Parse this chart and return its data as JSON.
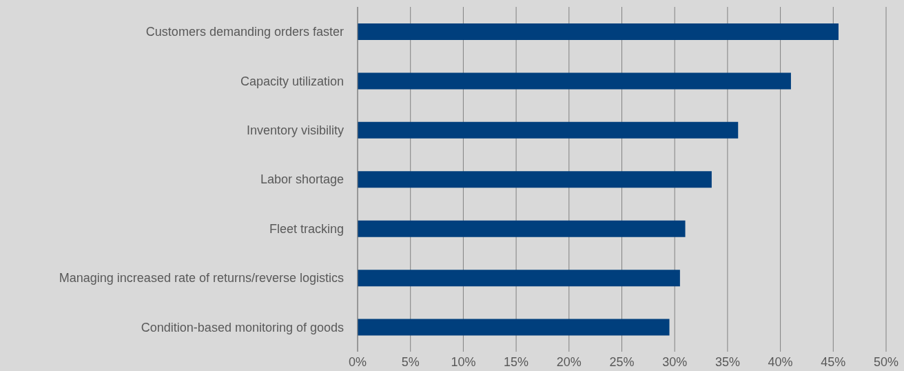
{
  "chart_data": {
    "type": "bar",
    "orientation": "horizontal",
    "categories": [
      "Customers demanding orders faster",
      "Capacity utilization",
      "Inventory visibility",
      "Labor shortage",
      "Fleet tracking",
      "Managing increased rate of returns/reverse logistics",
      "Condition-based monitoring of goods"
    ],
    "values": [
      45.5,
      41,
      36,
      33.5,
      31,
      30.5,
      29.5
    ],
    "color": "#003f7d",
    "xlim": [
      0,
      50
    ],
    "xticks": [
      {
        "value": 0,
        "label": "0%"
      },
      {
        "value": 5,
        "label": "5%"
      },
      {
        "value": 10,
        "label": "10%"
      },
      {
        "value": 15,
        "label": "15%"
      },
      {
        "value": 20,
        "label": "20%"
      },
      {
        "value": 25,
        "label": "25%"
      },
      {
        "value": 30,
        "label": "30%"
      },
      {
        "value": 35,
        "label": "35%"
      },
      {
        "value": 40,
        "label": "40%"
      },
      {
        "value": 45,
        "label": "45%"
      },
      {
        "value": 50,
        "label": "50%"
      }
    ],
    "grid": "x",
    "legend": false
  }
}
